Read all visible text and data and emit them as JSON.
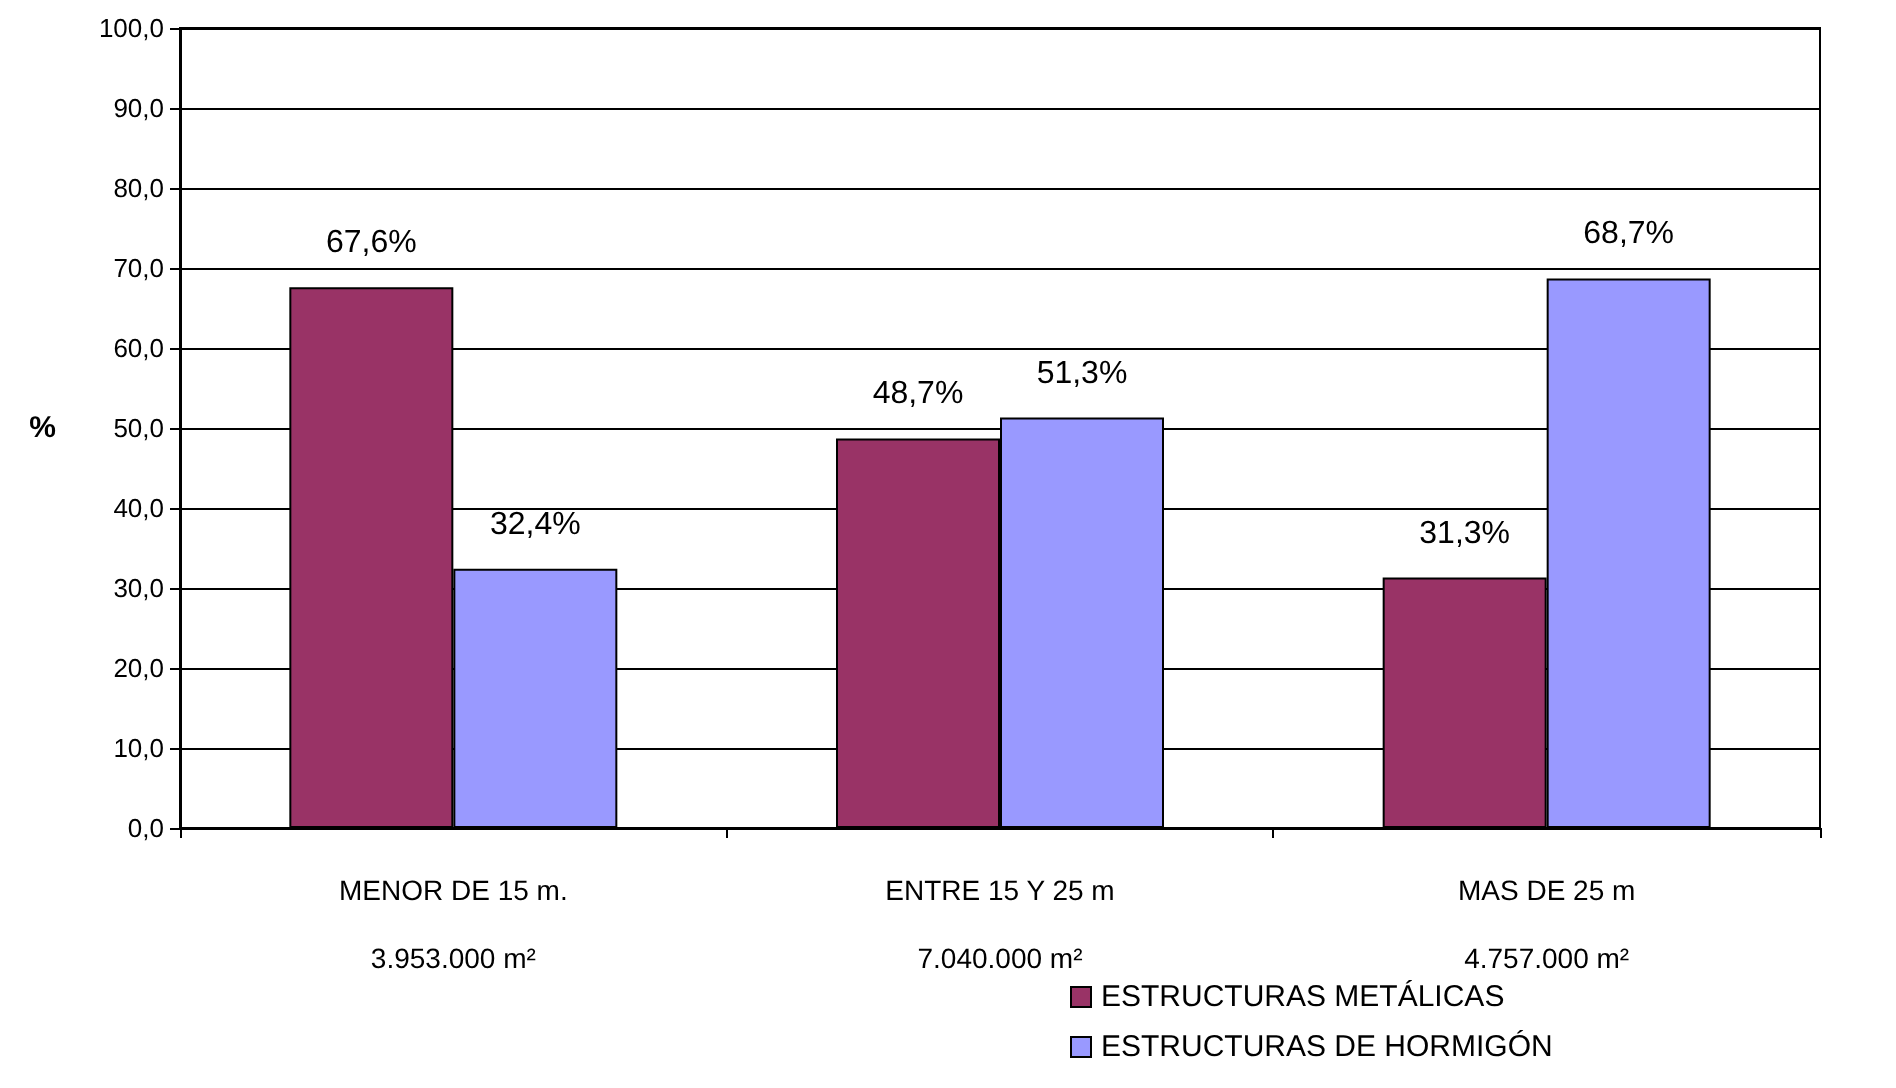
{
  "chart_data": {
    "type": "bar",
    "ylabel": "%",
    "categories": [
      "MENOR DE 15 m.\n3.953.000 m²",
      "ENTRE 15 Y 25 m\n7.040.000 m²",
      "MAS DE 25 m\n4.757.000 m²"
    ],
    "series": [
      {
        "name": "ESTRUCTURAS METÁLICAS",
        "color": "#993366",
        "values": [
          67.6,
          48.7,
          31.3
        ],
        "value_labels": [
          "67,6%",
          "48,7%",
          "31,3%"
        ]
      },
      {
        "name": "ESTRUCTURAS DE HORMIGÓN",
        "color": "#9999ff",
        "values": [
          32.4,
          51.3,
          68.7
        ],
        "value_labels": [
          "32,4%",
          "51,3%",
          "68,7%"
        ]
      }
    ],
    "ylim": [
      0,
      100
    ],
    "yticks": [
      {
        "value": 0,
        "label": "0,0"
      },
      {
        "value": 10,
        "label": "10,0"
      },
      {
        "value": 20,
        "label": "20,0"
      },
      {
        "value": 30,
        "label": "30,0"
      },
      {
        "value": 40,
        "label": "40,0"
      },
      {
        "value": 50,
        "label": "50,0"
      },
      {
        "value": 60,
        "label": "60,0"
      },
      {
        "value": 70,
        "label": "70,0"
      },
      {
        "value": 80,
        "label": "80,0"
      },
      {
        "value": 90,
        "label": "90,0"
      },
      {
        "value": 100,
        "label": "100,0"
      }
    ],
    "grid": "y",
    "legend": "bottom"
  }
}
